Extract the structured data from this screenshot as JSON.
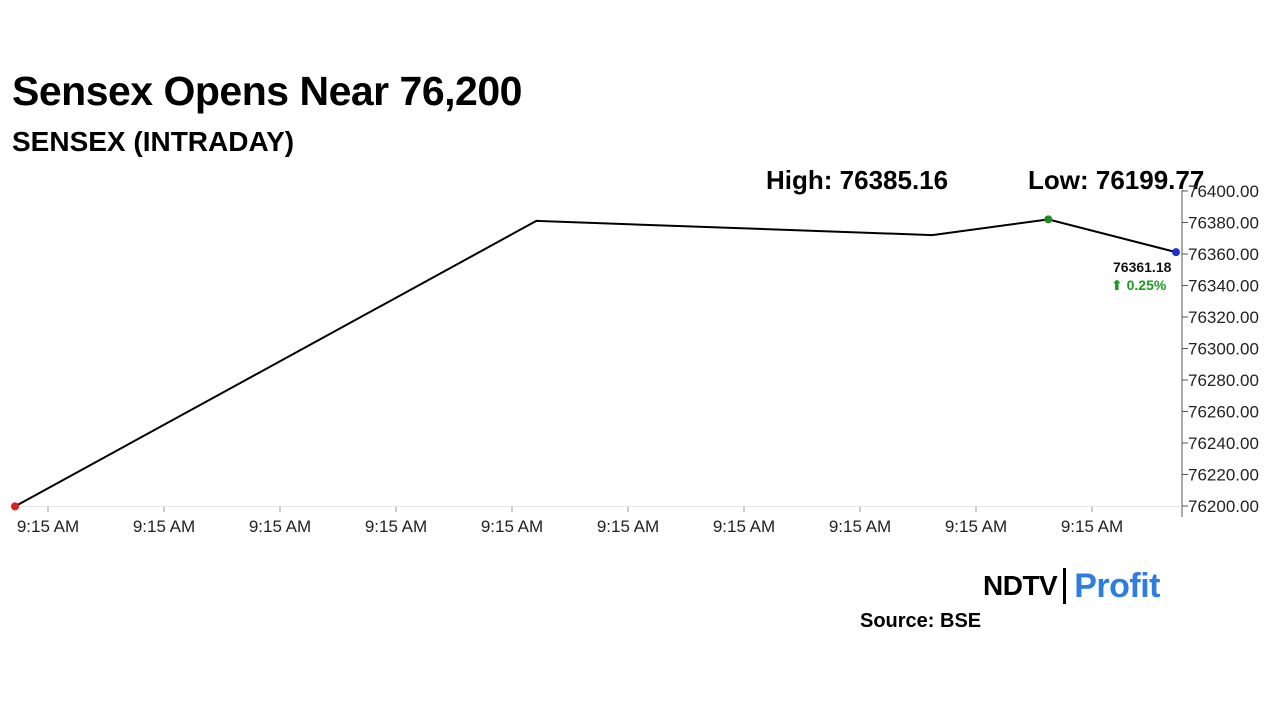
{
  "header": {
    "title": "Sensex Opens Near 76,200",
    "subtitle": "SENSEX (INTRADAY)"
  },
  "stats": {
    "high": "High: 76385.16",
    "low": "Low: 76199.77"
  },
  "last": {
    "value": "76361.18",
    "change": "⬆ 0.25%"
  },
  "footer": {
    "logo_left": "NDTV",
    "logo_right": "Profit",
    "source": "Source: BSE"
  },
  "colors": {
    "line": "#000000",
    "start_marker": "#e02020",
    "high_marker": "#1e8c1e",
    "last_marker": "#1f2fd0",
    "change_up": "#1e9a1e",
    "logo_profit": "#2f7de1"
  },
  "chart_data": {
    "type": "line",
    "title": "Sensex Opens Near 76,200",
    "subtitle": "SENSEX (INTRADAY)",
    "xlabel": "",
    "ylabel": "",
    "x_ticks": [
      "9:15 AM",
      "9:15 AM",
      "9:15 AM",
      "9:15 AM",
      "9:15 AM",
      "9:15 AM",
      "9:15 AM",
      "9:15 AM",
      "9:15 AM",
      "9:15 AM"
    ],
    "y_ticks": [
      "76200.00",
      "76220.00",
      "76240.00",
      "76260.00",
      "76280.00",
      "76300.00",
      "76320.00",
      "76340.00",
      "76360.00",
      "76380.00",
      "76400.00"
    ],
    "ylim": [
      76200,
      76400
    ],
    "series": [
      {
        "values": [
          76199.77,
          76381.0,
          76372.0,
          76382.0,
          76361.18
        ]
      }
    ],
    "x_positions": [
      0,
      0.449,
      0.79,
      0.89,
      1.0
    ],
    "markers": [
      {
        "label": "start",
        "index": 0
      },
      {
        "label": "high",
        "index": 3
      },
      {
        "label": "last",
        "index": 4
      }
    ],
    "grid": false,
    "legend": "none"
  }
}
